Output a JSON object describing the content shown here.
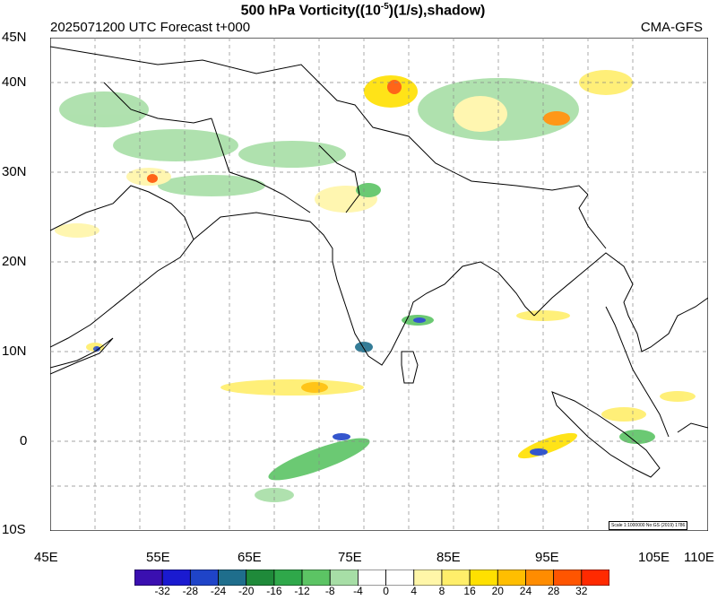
{
  "header": {
    "title_prefix": "500 hPa Vorticity((10",
    "title_exp": "-5",
    "title_suffix": ")(1/s),shadow)",
    "time_forecast": "2025071200 UTC Forecast t+000",
    "model": "CMA-GFS"
  },
  "axes": {
    "lat_labels": [
      "45N",
      "40N",
      "30N",
      "20N",
      "10N",
      "0",
      "10S"
    ],
    "lon_labels": [
      "45E",
      "55E",
      "65E",
      "75E",
      "85E",
      "95E",
      "105E",
      "110E"
    ]
  },
  "scale_note": "Scale 1:1000000 No:GS (2019) 1786",
  "colorbar": {
    "labels": [
      "-32",
      "-28",
      "-24",
      "-20",
      "-16",
      "-12",
      "-8",
      "-4",
      "0",
      "4",
      "8",
      "16",
      "20",
      "24",
      "28",
      "32"
    ],
    "colors": [
      "#3a0fb0",
      "#1a1ad0",
      "#1f44c8",
      "#1f6e8c",
      "#1f8a3a",
      "#2fa84a",
      "#5cc464",
      "#a7dea6",
      "#ffffff",
      "#ffffff",
      "#fff6a8",
      "#ffee6a",
      "#ffe000",
      "#ffbe00",
      "#ff8c00",
      "#ff5500",
      "#ff2a00"
    ]
  }
}
